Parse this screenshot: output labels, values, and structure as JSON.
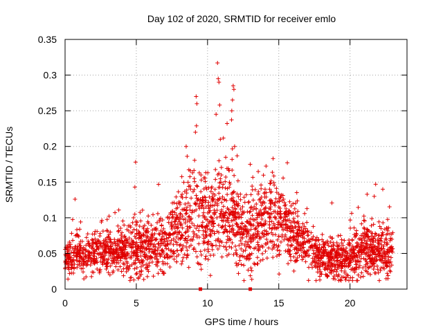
{
  "chart_data": {
    "type": "scatter",
    "title": "Day 102 of 2020, SRMTID for receiver emlo",
    "xlabel": "GPS time / hours",
    "ylabel": "SRMTID / TECUs",
    "xlim": [
      0,
      24
    ],
    "ylim": [
      0,
      0.35
    ],
    "xticks": [
      0,
      5,
      10,
      15,
      20
    ],
    "xtick_labels": [
      "0",
      "5",
      "10",
      "15",
      "20"
    ],
    "yticks": [
      0,
      0.05,
      0.1,
      0.15,
      0.2,
      0.25,
      0.3,
      0.35
    ],
    "ytick_labels": [
      "0",
      "0.05",
      "0.1",
      "0.15",
      "0.2",
      "0.25",
      "0.3",
      "0.35"
    ],
    "grid": true,
    "marker": "+",
    "series_color": "#e00000",
    "baseline_markers_x": [
      9.5,
      13.0
    ],
    "approx_envelope": {
      "note": "Approximate median and spread per hour read from the scatter",
      "hours": [
        0,
        1,
        2,
        3,
        4,
        5,
        6,
        7,
        8,
        9,
        10,
        11,
        12,
        13,
        14,
        15,
        16,
        17,
        18,
        19,
        20,
        21,
        22,
        23
      ],
      "median": [
        0.045,
        0.05,
        0.05,
        0.05,
        0.052,
        0.055,
        0.058,
        0.065,
        0.085,
        0.1,
        0.095,
        0.11,
        0.09,
        0.07,
        0.1,
        0.1,
        0.075,
        0.06,
        0.045,
        0.04,
        0.045,
        0.055,
        0.055,
        0.05
      ],
      "spread": [
        0.015,
        0.018,
        0.018,
        0.018,
        0.02,
        0.025,
        0.025,
        0.025,
        0.035,
        0.05,
        0.045,
        0.05,
        0.04,
        0.03,
        0.035,
        0.035,
        0.03,
        0.022,
        0.018,
        0.018,
        0.02,
        0.025,
        0.025,
        0.022
      ]
    },
    "notable_points": [
      {
        "x": 0.7,
        "y": 0.126
      },
      {
        "x": 4.95,
        "y": 0.178
      },
      {
        "x": 4.9,
        "y": 0.143
      },
      {
        "x": 8.5,
        "y": 0.2
      },
      {
        "x": 9.2,
        "y": 0.27
      },
      {
        "x": 9.25,
        "y": 0.26
      },
      {
        "x": 9.15,
        "y": 0.22
      },
      {
        "x": 10.7,
        "y": 0.317
      },
      {
        "x": 10.75,
        "y": 0.295
      },
      {
        "x": 10.8,
        "y": 0.29
      },
      {
        "x": 10.85,
        "y": 0.258
      },
      {
        "x": 10.6,
        "y": 0.245
      },
      {
        "x": 10.9,
        "y": 0.21
      },
      {
        "x": 11.8,
        "y": 0.285
      },
      {
        "x": 11.85,
        "y": 0.28
      },
      {
        "x": 11.75,
        "y": 0.265
      },
      {
        "x": 11.7,
        "y": 0.25
      },
      {
        "x": 11.9,
        "y": 0.2
      },
      {
        "x": 14.6,
        "y": 0.183
      },
      {
        "x": 15.6,
        "y": 0.177
      },
      {
        "x": 21.2,
        "y": 0.133
      },
      {
        "x": 21.7,
        "y": 0.13
      },
      {
        "x": 21.8,
        "y": 0.147
      },
      {
        "x": 22.3,
        "y": 0.14
      }
    ]
  }
}
